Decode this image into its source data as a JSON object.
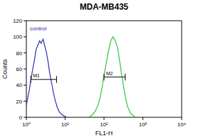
{
  "chart_data": {
    "type": "line",
    "title": "MDA-MB435",
    "x_label": "FL1-H",
    "y_label": "Counts",
    "log": "x",
    "xlim": [
      1,
      10000
    ],
    "xticks": [
      {
        "value": 1,
        "label": "10⁰"
      },
      {
        "value": 10,
        "label": "10¹"
      },
      {
        "value": 100,
        "label": "10²"
      },
      {
        "value": 1000,
        "label": "10³"
      },
      {
        "value": 10000,
        "label": "10⁴"
      }
    ],
    "ylim": [
      0,
      120
    ],
    "yticks": [
      0,
      20,
      40,
      60,
      80,
      100,
      120
    ],
    "series": [
      {
        "name": "control",
        "color": "#2a2ab8",
        "x": [
          1,
          1.2,
          1.4,
          1.6,
          1.8,
          2,
          2.2,
          2.4,
          2.7,
          3,
          3.3,
          3.6,
          4,
          4.5,
          5,
          5.6,
          6.3,
          7,
          8,
          9,
          10,
          11
        ],
        "values": [
          15,
          35,
          55,
          70,
          85,
          90,
          95,
          92,
          97,
          88,
          80,
          70,
          55,
          42,
          30,
          20,
          12,
          7,
          4,
          2,
          1,
          0
        ]
      },
      {
        "color": "#2fc42f",
        "x": [
          40,
          50,
          60,
          70,
          80,
          90,
          100,
          115,
          130,
          150,
          170,
          190,
          220,
          250,
          280,
          320,
          360,
          400,
          450,
          500,
          600,
          700
        ],
        "values": [
          0,
          3,
          8,
          15,
          25,
          38,
          52,
          68,
          82,
          95,
          100,
          96,
          88,
          72,
          55,
          38,
          24,
          14,
          8,
          4,
          1,
          0
        ]
      }
    ],
    "gates": [
      {
        "label": "M1",
        "x": [
          1.3,
          6
        ],
        "y": 47
      },
      {
        "label": "M2",
        "x": [
          100,
          350
        ],
        "y": 50
      }
    ]
  }
}
